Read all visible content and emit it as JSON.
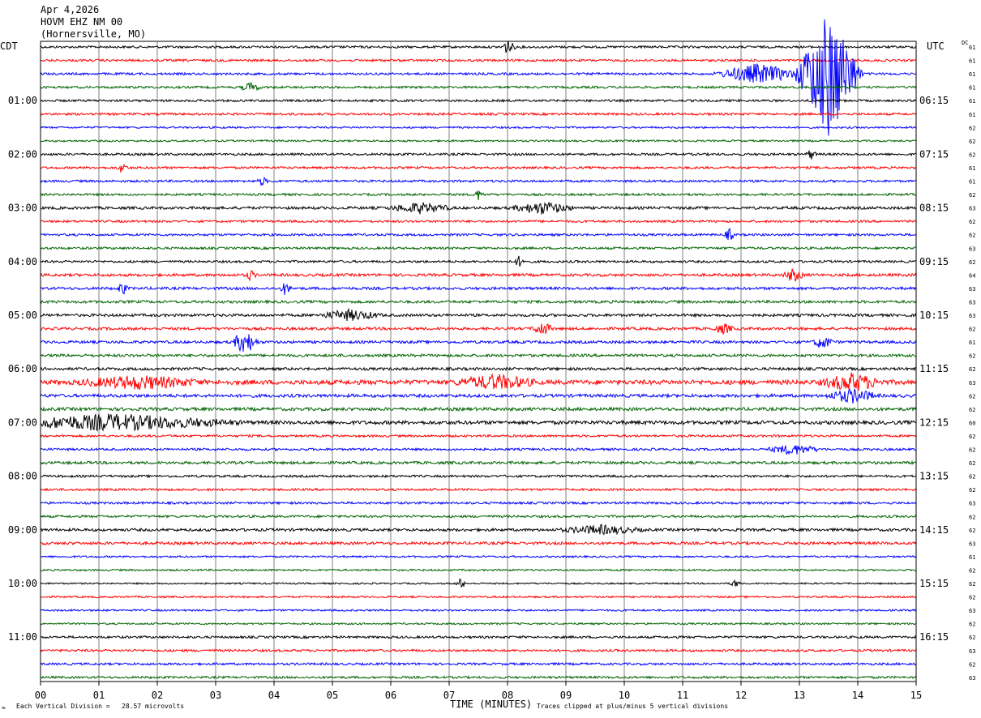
{
  "header": {
    "date": "Apr 4,2026",
    "station": "HOVM EHZ NM 00",
    "location": "(Hornersville, MO)"
  },
  "left_label": "CDT",
  "right_label": "UTC",
  "dc_label": "DC",
  "footer": {
    "left": "Each Vertical Division =   28.57 microvolts",
    "center": "TIME (MINUTES)",
    "right": "Traces clipped at plus/minus 5 vertical divisions",
    "corner_mark": "≈"
  },
  "colors": {
    "trace_cycle": [
      "#000000",
      "#ff0000",
      "#0000ff",
      "#006400"
    ],
    "grid": "#808080",
    "frame": "#000000"
  },
  "chart_data": {
    "type": "line",
    "xlabel": "TIME (MINUTES)",
    "xlim": [
      0,
      15
    ],
    "x_ticks": [
      "00",
      "01",
      "02",
      "03",
      "04",
      "05",
      "06",
      "07",
      "08",
      "09",
      "10",
      "11",
      "12",
      "13",
      "14",
      "15"
    ],
    "rows_per_hour": 4,
    "num_traces": 48,
    "left_time_labels": [
      {
        "trace": 4,
        "label": "01:00"
      },
      {
        "trace": 8,
        "label": "02:00"
      },
      {
        "trace": 12,
        "label": "03:00"
      },
      {
        "trace": 16,
        "label": "04:00"
      },
      {
        "trace": 20,
        "label": "05:00"
      },
      {
        "trace": 24,
        "label": "06:00"
      },
      {
        "trace": 28,
        "label": "07:00"
      },
      {
        "trace": 32,
        "label": "08:00"
      },
      {
        "trace": 36,
        "label": "09:00"
      },
      {
        "trace": 40,
        "label": "10:00"
      },
      {
        "trace": 44,
        "label": "11:00"
      }
    ],
    "right_time_labels": [
      {
        "trace": 4,
        "label": "06:15"
      },
      {
        "trace": 8,
        "label": "07:15"
      },
      {
        "trace": 12,
        "label": "08:15"
      },
      {
        "trace": 16,
        "label": "09:15"
      },
      {
        "trace": 20,
        "label": "10:15"
      },
      {
        "trace": 24,
        "label": "11:15"
      },
      {
        "trace": 28,
        "label": "12:15"
      },
      {
        "trace": 32,
        "label": "13:15"
      },
      {
        "trace": 36,
        "label": "14:15"
      },
      {
        "trace": 40,
        "label": "15:15"
      },
      {
        "trace": 44,
        "label": "16:15"
      }
    ],
    "dc_offsets": [
      "61",
      "61",
      "61",
      "61",
      "61",
      "61",
      "62",
      "62",
      "62",
      "61",
      "61",
      "62",
      "63",
      "62",
      "62",
      "63",
      "62",
      "64",
      "63",
      "63",
      "63",
      "62",
      "61",
      "62",
      "62",
      "63",
      "62",
      "62",
      "60",
      "62",
      "62",
      "62",
      "62",
      "62",
      "63",
      "62",
      "62",
      "63",
      "61",
      "62",
      "62",
      "62",
      "63",
      "62",
      "62",
      "63",
      "62",
      "63"
    ],
    "noise_levels": [
      1,
      1,
      1,
      1,
      1,
      1,
      0.8,
      0.8,
      1,
      1,
      1,
      1,
      1.2,
      1,
      1,
      1,
      1,
      1.2,
      1.2,
      1.2,
      1.2,
      1.2,
      1.2,
      1.2,
      1.2,
      2.0,
      1.4,
      1.4,
      1.6,
      1,
      1,
      1.2,
      1,
      1,
      1,
      1,
      1.2,
      1.2,
      0.8,
      0.8,
      0.7,
      0.8,
      0.8,
      0.8,
      1,
      1,
      1,
      1
    ],
    "events": [
      {
        "trace": 0,
        "minute": 8.0,
        "amp": 8,
        "dur": 0.15
      },
      {
        "trace": 2,
        "minute": 12.3,
        "amp": 12,
        "dur": 0.8
      },
      {
        "trace": 2,
        "minute": 13.5,
        "amp": 80,
        "dur": 0.6
      },
      {
        "trace": 3,
        "minute": 3.6,
        "amp": 5,
        "dur": 0.2
      },
      {
        "trace": 8,
        "minute": 13.2,
        "amp": 6,
        "dur": 0.1
      },
      {
        "trace": 9,
        "minute": 1.4,
        "amp": 6,
        "dur": 0.1
      },
      {
        "trace": 10,
        "minute": 3.8,
        "amp": 5,
        "dur": 0.1
      },
      {
        "trace": 11,
        "minute": 7.5,
        "amp": 6,
        "dur": 0.1
      },
      {
        "trace": 12,
        "minute": 6.5,
        "amp": 6,
        "dur": 0.6
      },
      {
        "trace": 12,
        "minute": 8.6,
        "amp": 7,
        "dur": 0.6
      },
      {
        "trace": 14,
        "minute": 11.8,
        "amp": 7,
        "dur": 0.1
      },
      {
        "trace": 16,
        "minute": 8.2,
        "amp": 6,
        "dur": 0.1
      },
      {
        "trace": 17,
        "minute": 3.6,
        "amp": 6,
        "dur": 0.1
      },
      {
        "trace": 17,
        "minute": 12.9,
        "amp": 8,
        "dur": 0.2
      },
      {
        "trace": 18,
        "minute": 1.4,
        "amp": 8,
        "dur": 0.1
      },
      {
        "trace": 18,
        "minute": 4.2,
        "amp": 8,
        "dur": 0.1
      },
      {
        "trace": 20,
        "minute": 5.3,
        "amp": 6,
        "dur": 0.6
      },
      {
        "trace": 21,
        "minute": 8.6,
        "amp": 8,
        "dur": 0.2
      },
      {
        "trace": 21,
        "minute": 11.7,
        "amp": 6,
        "dur": 0.2
      },
      {
        "trace": 22,
        "minute": 3.5,
        "amp": 14,
        "dur": 0.25
      },
      {
        "trace": 22,
        "minute": 13.4,
        "amp": 8,
        "dur": 0.2
      },
      {
        "trace": 25,
        "minute": 1.7,
        "amp": 7,
        "dur": 1.2
      },
      {
        "trace": 25,
        "minute": 7.8,
        "amp": 8,
        "dur": 0.8
      },
      {
        "trace": 25,
        "minute": 13.9,
        "amp": 10,
        "dur": 0.6
      },
      {
        "trace": 26,
        "minute": 13.9,
        "amp": 8,
        "dur": 0.5
      },
      {
        "trace": 28,
        "minute": 1.2,
        "amp": 9,
        "dur": 2.4
      },
      {
        "trace": 30,
        "minute": 12.9,
        "amp": 6,
        "dur": 0.5
      },
      {
        "trace": 36,
        "minute": 9.6,
        "amp": 5,
        "dur": 0.8
      },
      {
        "trace": 40,
        "minute": 7.2,
        "amp": 6,
        "dur": 0.1
      },
      {
        "trace": 40,
        "minute": 11.9,
        "amp": 5,
        "dur": 0.1
      }
    ]
  }
}
